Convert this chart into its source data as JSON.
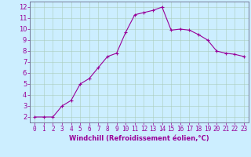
{
  "x": [
    0,
    1,
    2,
    3,
    4,
    5,
    6,
    7,
    8,
    9,
    10,
    11,
    12,
    13,
    14,
    15,
    16,
    17,
    18,
    19,
    20,
    21,
    22,
    23
  ],
  "y": [
    2,
    2,
    2,
    3,
    3.5,
    5,
    5.5,
    6.5,
    7.5,
    7.8,
    9.7,
    11.3,
    11.5,
    11.7,
    12,
    9.9,
    10,
    9.9,
    9.5,
    9,
    8,
    7.8,
    7.7,
    7.5
  ],
  "line_color": "#990099",
  "marker": "+",
  "marker_size": 3,
  "marker_linewidth": 0.8,
  "background_color": "#cceeff",
  "grid_color": "#aaccbb",
  "xlabel": "Windchill (Refroidissement éolien,°C)",
  "xlabel_color": "#990099",
  "tick_color": "#990099",
  "spine_color": "#666688",
  "xlim": [
    -0.5,
    23.5
  ],
  "ylim": [
    1.5,
    12.5
  ],
  "yticks": [
    2,
    3,
    4,
    5,
    6,
    7,
    8,
    9,
    10,
    11,
    12
  ],
  "xticks": [
    0,
    1,
    2,
    3,
    4,
    5,
    6,
    7,
    8,
    9,
    10,
    11,
    12,
    13,
    14,
    15,
    16,
    17,
    18,
    19,
    20,
    21,
    22,
    23
  ],
  "xlabel_fontsize": 6.0,
  "tick_fontsize_x": 5.5,
  "tick_fontsize_y": 6.0,
  "linewidth": 0.8
}
